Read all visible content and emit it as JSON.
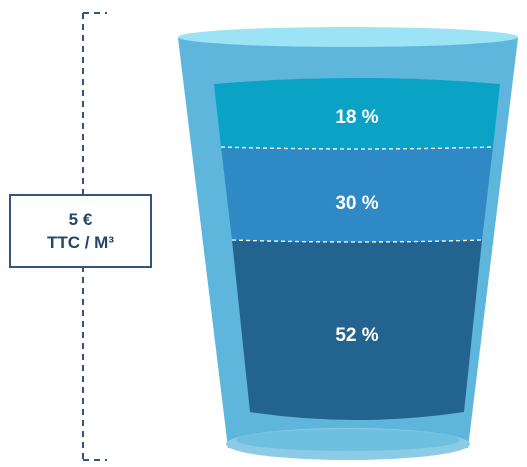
{
  "price": {
    "line1": "5 €",
    "line2": "TTC / M³"
  },
  "glass": {
    "segments": [
      {
        "label": "18 %",
        "value": 18,
        "color": "#0aa3c6"
      },
      {
        "label": "30 %",
        "value": 30,
        "color": "#2f89c5"
      },
      {
        "label": "52 %",
        "value": 52,
        "color": "#23638f"
      }
    ],
    "glass_colors": {
      "rim": "#9be3f5",
      "body": "#5fb6dc",
      "base": "#8ccbe6"
    }
  },
  "colors": {
    "bracket": "#34557a",
    "box_border": "#34557a",
    "box_text": "#24466b",
    "divider": "#ffffff"
  }
}
